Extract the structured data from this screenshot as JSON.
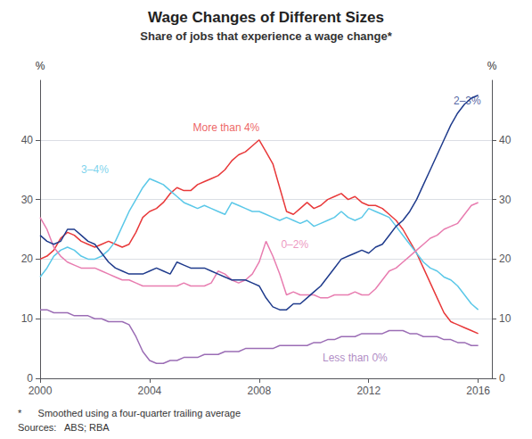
{
  "chart_data": {
    "type": "line",
    "title": "Wage Changes of Different Sizes",
    "subtitle": "Share of jobs that experience a wage change*",
    "footnote": "*      Smoothed using a four-quarter trailing average",
    "sources": "Sources:   ABS; RBA",
    "ylabel": "%",
    "y2label": "%",
    "x": [
      2000.0,
      2000.25,
      2000.5,
      2000.75,
      2001.0,
      2001.25,
      2001.5,
      2001.75,
      2002.0,
      2002.25,
      2002.5,
      2002.75,
      2003.0,
      2003.25,
      2003.5,
      2003.75,
      2004.0,
      2004.25,
      2004.5,
      2004.75,
      2005.0,
      2005.25,
      2005.5,
      2005.75,
      2006.0,
      2006.25,
      2006.5,
      2006.75,
      2007.0,
      2007.25,
      2007.5,
      2007.75,
      2008.0,
      2008.25,
      2008.5,
      2008.75,
      2009.0,
      2009.25,
      2009.5,
      2009.75,
      2010.0,
      2010.25,
      2010.5,
      2010.75,
      2011.0,
      2011.25,
      2011.5,
      2011.75,
      2012.0,
      2012.25,
      2012.5,
      2012.75,
      2013.0,
      2013.25,
      2013.5,
      2013.75,
      2014.0,
      2014.25,
      2014.5,
      2014.75,
      2015.0,
      2015.25,
      2015.5,
      2015.75,
      2016.0
    ],
    "series": [
      {
        "name": "More than 4%",
        "color": "#e8393a",
        "values": [
          20.0,
          20.5,
          21.5,
          23.5,
          24.5,
          24.0,
          23.0,
          22.5,
          22.0,
          22.5,
          23.0,
          22.5,
          22.0,
          22.5,
          24.5,
          27.0,
          28.0,
          28.5,
          29.5,
          31.0,
          32.0,
          31.5,
          31.5,
          32.5,
          33.0,
          33.5,
          34.0,
          35.0,
          36.5,
          37.5,
          38.0,
          39.0,
          40.0,
          38.0,
          36.0,
          32.0,
          28.0,
          27.5,
          28.5,
          29.5,
          28.5,
          29.0,
          30.0,
          30.5,
          31.0,
          30.0,
          30.5,
          29.5,
          29.0,
          29.0,
          28.5,
          27.5,
          26.5,
          25.0,
          23.0,
          21.0,
          18.5,
          16.0,
          13.5,
          11.0,
          9.5,
          9.0,
          8.5,
          8.0,
          7.5
        ]
      },
      {
        "name": "3–4%",
        "color": "#5bc8e8",
        "values": [
          17.0,
          18.5,
          20.5,
          21.5,
          22.0,
          21.5,
          20.5,
          20.0,
          20.0,
          20.5,
          21.5,
          23.0,
          25.5,
          28.0,
          30.0,
          32.0,
          33.5,
          33.0,
          32.5,
          31.5,
          30.5,
          29.5,
          29.0,
          28.5,
          29.0,
          28.5,
          28.0,
          27.5,
          29.5,
          29.0,
          28.5,
          28.0,
          28.0,
          27.5,
          27.0,
          26.5,
          27.0,
          26.5,
          26.0,
          26.5,
          25.5,
          26.0,
          26.5,
          27.0,
          28.0,
          27.0,
          26.5,
          27.0,
          28.5,
          28.0,
          27.5,
          27.0,
          25.5,
          24.0,
          22.5,
          21.0,
          19.5,
          18.5,
          18.0,
          17.0,
          16.5,
          15.5,
          14.0,
          12.5,
          11.5
        ]
      },
      {
        "name": "0–2%",
        "color": "#e87db0",
        "values": [
          27.0,
          25.0,
          22.0,
          20.5,
          19.5,
          19.0,
          18.5,
          18.5,
          18.5,
          18.0,
          17.5,
          17.0,
          16.5,
          16.5,
          16.0,
          15.5,
          15.5,
          15.5,
          15.5,
          15.5,
          15.5,
          16.0,
          15.5,
          15.5,
          15.5,
          16.0,
          18.0,
          17.5,
          16.5,
          16.0,
          16.5,
          17.5,
          19.5,
          23.0,
          20.5,
          17.5,
          14.0,
          14.5,
          14.0,
          14.0,
          14.0,
          13.5,
          13.5,
          14.0,
          14.0,
          14.0,
          14.5,
          14.0,
          14.0,
          15.0,
          16.5,
          18.0,
          18.5,
          19.5,
          20.5,
          21.5,
          22.5,
          23.5,
          24.0,
          25.0,
          25.5,
          26.0,
          27.5,
          29.0,
          29.5
        ]
      },
      {
        "name": "2–3%",
        "color": "#1f3b8c",
        "values": [
          24.0,
          23.0,
          22.5,
          23.0,
          25.0,
          25.0,
          24.0,
          23.0,
          22.5,
          21.0,
          19.5,
          18.5,
          18.0,
          17.5,
          17.5,
          17.5,
          18.0,
          18.5,
          18.0,
          17.5,
          19.5,
          19.0,
          18.5,
          18.5,
          18.5,
          18.0,
          17.5,
          17.0,
          16.5,
          16.5,
          16.5,
          16.0,
          15.5,
          13.5,
          12.0,
          11.5,
          11.5,
          12.5,
          12.5,
          13.5,
          14.5,
          15.5,
          17.0,
          18.5,
          20.0,
          20.5,
          21.0,
          21.5,
          21.0,
          22.0,
          22.5,
          24.0,
          25.5,
          26.5,
          28.0,
          30.0,
          32.5,
          35.0,
          37.5,
          40.0,
          42.5,
          44.5,
          46.0,
          47.0,
          47.5
        ]
      },
      {
        "name": "Less than 0%",
        "color": "#9b6db5",
        "values": [
          11.5,
          11.5,
          11.0,
          11.0,
          11.0,
          10.5,
          10.5,
          10.5,
          10.0,
          10.0,
          9.5,
          9.5,
          9.5,
          9.0,
          7.0,
          4.5,
          3.0,
          2.5,
          2.5,
          3.0,
          3.0,
          3.5,
          3.5,
          3.5,
          4.0,
          4.0,
          4.0,
          4.5,
          4.5,
          4.5,
          5.0,
          5.0,
          5.0,
          5.0,
          5.0,
          5.5,
          5.5,
          5.5,
          5.5,
          5.5,
          6.0,
          6.0,
          6.5,
          6.5,
          7.0,
          7.0,
          7.0,
          7.5,
          7.5,
          7.5,
          7.5,
          8.0,
          8.0,
          8.0,
          7.5,
          7.5,
          7.0,
          7.0,
          7.0,
          6.5,
          6.5,
          6.0,
          6.0,
          5.5,
          5.5
        ]
      }
    ],
    "xlim": [
      2000.0,
      2016.5
    ],
    "xticks": [
      2000,
      2004,
      2008,
      2012,
      2016
    ],
    "ylim": [
      0,
      50
    ],
    "yticks": [
      0,
      10,
      20,
      30,
      40
    ],
    "y2lim": [
      0,
      50
    ],
    "y2ticks": [
      0,
      10,
      20,
      30,
      40
    ],
    "grid": true,
    "annotations": [
      {
        "text": "More than 4%",
        "x": 2006.8,
        "y": 42.0,
        "color": "#e8393a"
      },
      {
        "text": "3–4%",
        "x": 2002.0,
        "y": 35.0,
        "color": "#5bc8e8"
      },
      {
        "text": "0–2%",
        "x": 2009.3,
        "y": 22.5,
        "color": "#e87db0"
      },
      {
        "text": "2–3%",
        "x": 2015.6,
        "y": 46.5,
        "color": "#1f3b8c"
      },
      {
        "text": "Less than 0%",
        "x": 2011.5,
        "y": 3.5,
        "color": "#9b6db5"
      }
    ]
  }
}
